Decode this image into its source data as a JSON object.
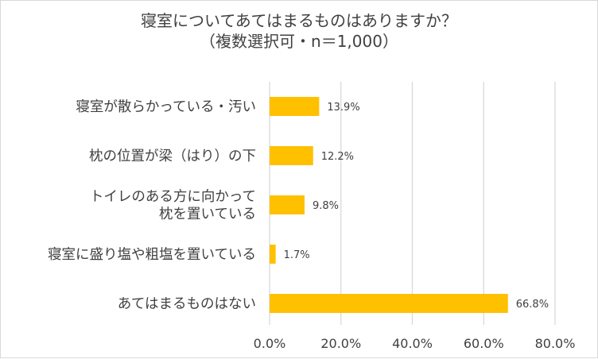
{
  "chart_data": {
    "type": "bar",
    "orientation": "horizontal",
    "title": "寝室についてあてはまるものはありますか？",
    "subtitle": "（複数選択可・n＝1,000）",
    "categories": [
      [
        "寝室が散らかっている・汚い"
      ],
      [
        "枕の位置が梁（はり）の下"
      ],
      [
        "トイレのある方に向かって",
        "枕を置いている"
      ],
      [
        "寝室に盛り塩や粗塩を置いている"
      ],
      [
        "あてはまるものはない"
      ]
    ],
    "values": [
      13.9,
      12.2,
      9.8,
      1.7,
      66.8
    ],
    "value_labels": [
      "13.9%",
      "12.2%",
      "9.8%",
      "1.7%",
      "66.8%"
    ],
    "xlim": [
      0,
      80
    ],
    "xticks": [
      0,
      20,
      40,
      60,
      80
    ],
    "xtick_labels": [
      "0.0%",
      "20.0%",
      "40.0%",
      "60.0%",
      "80.0%"
    ],
    "grid": "vertical",
    "bar_color": "#FFC000",
    "grid_color": "#d9d9d9"
  }
}
